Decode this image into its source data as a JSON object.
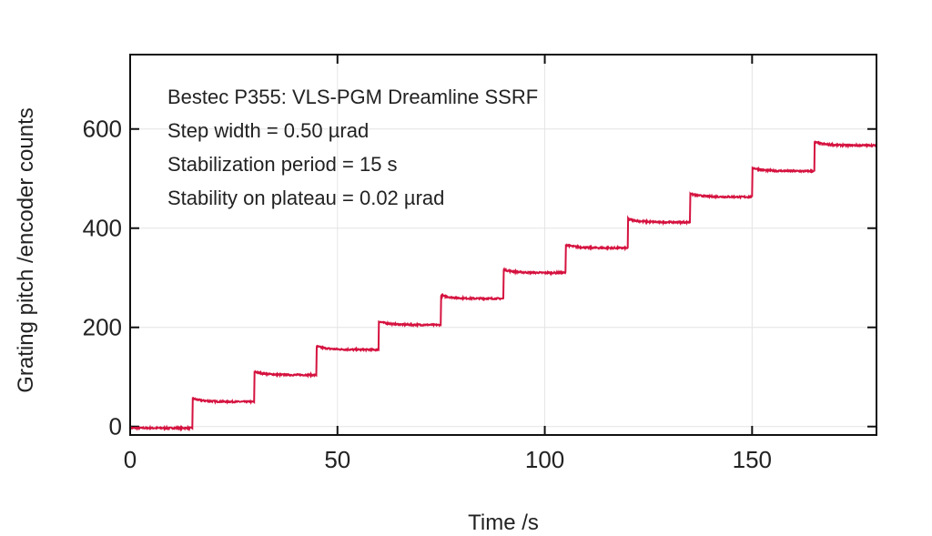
{
  "chart_data": {
    "type": "line",
    "title": "",
    "xlabel": "Time /s",
    "ylabel": "Grating pitch /encoder counts",
    "xlim": [
      0,
      180
    ],
    "ylim": [
      -17,
      750
    ],
    "xticks": [
      0,
      50,
      100,
      150
    ],
    "yticks": [
      0,
      200,
      400,
      600
    ],
    "grid": true,
    "annotations": [
      "Bestec P355: VLS-PGM Dreamline SSRF",
      "Step width = 0.50 µrad",
      "Stabilization period = 15 s",
      "Stability on plateau = 0.02 µrad"
    ],
    "series": [
      {
        "name": "pitch",
        "color": "#d5123f",
        "step_period_s": 15,
        "step_times": [
          0,
          15,
          30,
          45,
          60,
          75,
          90,
          105,
          120,
          135,
          150,
          165
        ],
        "plateau_values": [
          -3,
          50,
          104,
          155,
          205,
          258,
          310,
          360,
          412,
          463,
          515,
          567
        ]
      }
    ]
  }
}
